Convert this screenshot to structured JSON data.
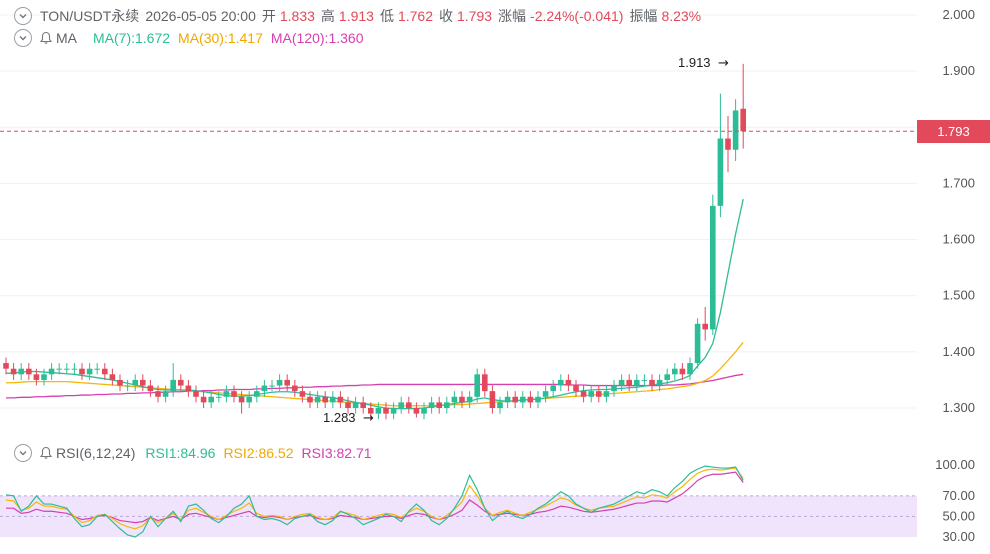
{
  "header": {
    "symbol": "TON/USDT永续",
    "datetime": "2026-05-05 20:00",
    "open_label": "开",
    "open": "1.833",
    "high_label": "高",
    "high": "1.913",
    "low_label": "低",
    "low": "1.762",
    "close_label": "收",
    "close": "1.793",
    "change_label": "涨幅",
    "change": "-2.24%(-0.041)",
    "amp_label": "振幅",
    "amp": "8.23%"
  },
  "ma": {
    "label": "MA",
    "ma7": "MA(7):1.672",
    "ma30": "MA(30):1.417",
    "ma120": "MA(120):1.360"
  },
  "rsi": {
    "label": "RSI(6,12,24)",
    "rsi1": "RSI1:84.96",
    "rsi2": "RSI2:86.52",
    "rsi3": "RSI3:82.71"
  },
  "price_tag": "1.793",
  "annotations": {
    "high": "1.913",
    "low": "1.283"
  },
  "colors": {
    "up": "#2dbd96",
    "down": "#e2495b",
    "ma7": "#2dbd96",
    "ma30": "#f5b70a",
    "ma120": "#d63fb0",
    "rsi_band": "#efe4fb"
  },
  "chart_data": {
    "type": "candlestick",
    "y_ticks": [
      "2.000",
      "1.900",
      "1.800",
      "1.700",
      "1.600",
      "1.500",
      "1.400",
      "1.300"
    ],
    "ylim": [
      1.25,
      2.02
    ],
    "rsi_ticks": [
      "100.00",
      "70.00",
      "50.00",
      "30.00"
    ],
    "rsi_ylim": [
      25,
      105
    ],
    "rsi_band": [
      30,
      70
    ],
    "candles": [
      [
        1.38,
        1.37,
        1.39,
        1.36
      ],
      [
        1.37,
        1.36,
        1.38,
        1.35
      ],
      [
        1.36,
        1.37,
        1.38,
        1.35
      ],
      [
        1.37,
        1.36,
        1.38,
        1.35
      ],
      [
        1.36,
        1.35,
        1.37,
        1.34
      ],
      [
        1.35,
        1.36,
        1.37,
        1.34
      ],
      [
        1.36,
        1.37,
        1.38,
        1.35
      ],
      [
        1.37,
        1.37,
        1.38,
        1.36
      ],
      [
        1.37,
        1.37,
        1.38,
        1.36
      ],
      [
        1.37,
        1.37,
        1.38,
        1.36
      ],
      [
        1.37,
        1.36,
        1.38,
        1.35
      ],
      [
        1.36,
        1.37,
        1.38,
        1.35
      ],
      [
        1.37,
        1.37,
        1.38,
        1.36
      ],
      [
        1.37,
        1.36,
        1.38,
        1.35
      ],
      [
        1.36,
        1.35,
        1.37,
        1.34
      ],
      [
        1.35,
        1.34,
        1.36,
        1.33
      ],
      [
        1.34,
        1.34,
        1.35,
        1.33
      ],
      [
        1.34,
        1.35,
        1.36,
        1.33
      ],
      [
        1.35,
        1.34,
        1.36,
        1.33
      ],
      [
        1.34,
        1.33,
        1.35,
        1.32
      ],
      [
        1.33,
        1.32,
        1.34,
        1.31
      ],
      [
        1.32,
        1.33,
        1.34,
        1.31
      ],
      [
        1.33,
        1.35,
        1.38,
        1.32
      ],
      [
        1.35,
        1.34,
        1.36,
        1.33
      ],
      [
        1.34,
        1.33,
        1.35,
        1.32
      ],
      [
        1.33,
        1.32,
        1.34,
        1.31
      ],
      [
        1.32,
        1.31,
        1.33,
        1.3
      ],
      [
        1.31,
        1.32,
        1.33,
        1.3
      ],
      [
        1.32,
        1.32,
        1.33,
        1.31
      ],
      [
        1.32,
        1.33,
        1.34,
        1.31
      ],
      [
        1.33,
        1.32,
        1.34,
        1.31
      ],
      [
        1.32,
        1.31,
        1.33,
        1.29
      ],
      [
        1.31,
        1.32,
        1.33,
        1.3
      ],
      [
        1.32,
        1.33,
        1.34,
        1.31
      ],
      [
        1.33,
        1.34,
        1.35,
        1.32
      ],
      [
        1.34,
        1.34,
        1.35,
        1.33
      ],
      [
        1.34,
        1.35,
        1.36,
        1.33
      ],
      [
        1.35,
        1.34,
        1.36,
        1.33
      ],
      [
        1.34,
        1.33,
        1.35,
        1.32
      ],
      [
        1.33,
        1.32,
        1.34,
        1.31
      ],
      [
        1.32,
        1.31,
        1.33,
        1.3
      ],
      [
        1.31,
        1.32,
        1.33,
        1.3
      ],
      [
        1.32,
        1.31,
        1.33,
        1.3
      ],
      [
        1.31,
        1.32,
        1.33,
        1.3
      ],
      [
        1.32,
        1.31,
        1.33,
        1.3
      ],
      [
        1.31,
        1.3,
        1.32,
        1.29
      ],
      [
        1.3,
        1.31,
        1.32,
        1.29
      ],
      [
        1.31,
        1.3,
        1.32,
        1.29
      ],
      [
        1.3,
        1.29,
        1.31,
        1.28
      ],
      [
        1.29,
        1.3,
        1.31,
        1.28
      ],
      [
        1.3,
        1.29,
        1.31,
        1.28
      ],
      [
        1.29,
        1.3,
        1.31,
        1.28
      ],
      [
        1.3,
        1.31,
        1.32,
        1.29
      ],
      [
        1.31,
        1.3,
        1.32,
        1.29
      ],
      [
        1.3,
        1.29,
        1.31,
        1.283
      ],
      [
        1.29,
        1.3,
        1.31,
        1.28
      ],
      [
        1.3,
        1.31,
        1.32,
        1.29
      ],
      [
        1.31,
        1.3,
        1.32,
        1.29
      ],
      [
        1.3,
        1.31,
        1.32,
        1.29
      ],
      [
        1.31,
        1.32,
        1.33,
        1.3
      ],
      [
        1.32,
        1.31,
        1.33,
        1.3
      ],
      [
        1.31,
        1.32,
        1.33,
        1.3
      ],
      [
        1.32,
        1.36,
        1.37,
        1.31
      ],
      [
        1.36,
        1.33,
        1.37,
        1.32
      ],
      [
        1.33,
        1.3,
        1.34,
        1.29
      ],
      [
        1.3,
        1.31,
        1.32,
        1.29
      ],
      [
        1.31,
        1.32,
        1.33,
        1.3
      ],
      [
        1.32,
        1.31,
        1.33,
        1.3
      ],
      [
        1.31,
        1.32,
        1.33,
        1.3
      ],
      [
        1.32,
        1.31,
        1.33,
        1.3
      ],
      [
        1.31,
        1.32,
        1.33,
        1.3
      ],
      [
        1.32,
        1.33,
        1.34,
        1.31
      ],
      [
        1.33,
        1.34,
        1.35,
        1.32
      ],
      [
        1.34,
        1.35,
        1.36,
        1.33
      ],
      [
        1.35,
        1.34,
        1.36,
        1.33
      ],
      [
        1.34,
        1.33,
        1.35,
        1.32
      ],
      [
        1.33,
        1.32,
        1.34,
        1.31
      ],
      [
        1.32,
        1.33,
        1.34,
        1.31
      ],
      [
        1.33,
        1.32,
        1.34,
        1.31
      ],
      [
        1.32,
        1.33,
        1.34,
        1.31
      ],
      [
        1.33,
        1.34,
        1.35,
        1.32
      ],
      [
        1.34,
        1.35,
        1.36,
        1.33
      ],
      [
        1.35,
        1.34,
        1.36,
        1.33
      ],
      [
        1.34,
        1.35,
        1.36,
        1.33
      ],
      [
        1.35,
        1.35,
        1.36,
        1.34
      ],
      [
        1.35,
        1.34,
        1.36,
        1.33
      ],
      [
        1.34,
        1.35,
        1.36,
        1.33
      ],
      [
        1.35,
        1.36,
        1.37,
        1.34
      ],
      [
        1.36,
        1.37,
        1.38,
        1.35
      ],
      [
        1.37,
        1.36,
        1.38,
        1.35
      ],
      [
        1.36,
        1.38,
        1.39,
        1.35
      ],
      [
        1.38,
        1.45,
        1.46,
        1.37
      ],
      [
        1.45,
        1.44,
        1.48,
        1.42
      ],
      [
        1.44,
        1.66,
        1.68,
        1.43
      ],
      [
        1.66,
        1.78,
        1.86,
        1.64
      ],
      [
        1.78,
        1.76,
        1.82,
        1.72
      ],
      [
        1.76,
        1.83,
        1.85,
        1.74
      ],
      [
        1.833,
        1.793,
        1.913,
        1.762
      ]
    ],
    "ma7": [
      1.362,
      1.362,
      1.364,
      1.365,
      1.365,
      1.364,
      1.363,
      1.362,
      1.361,
      1.36,
      1.358,
      1.356,
      1.354,
      1.352,
      1.35,
      1.347,
      1.344,
      1.341,
      1.338,
      1.335,
      1.333,
      1.332,
      1.332,
      1.332,
      1.332,
      1.331,
      1.329,
      1.327,
      1.324,
      1.322,
      1.321,
      1.321,
      1.322,
      1.324,
      1.326,
      1.328,
      1.329,
      1.329,
      1.328,
      1.326,
      1.324,
      1.322,
      1.32,
      1.318,
      1.316,
      1.313,
      1.31,
      1.308,
      1.305,
      1.302,
      1.3,
      1.299,
      1.299,
      1.299,
      1.299,
      1.3,
      1.302,
      1.304,
      1.306,
      1.308,
      1.31,
      1.312,
      1.316,
      1.318,
      1.315,
      1.313,
      1.312,
      1.313,
      1.314,
      1.315,
      1.316,
      1.318,
      1.32,
      1.323,
      1.326,
      1.329,
      1.331,
      1.332,
      1.333,
      1.333,
      1.334,
      1.335,
      1.336,
      1.337,
      1.339,
      1.341,
      1.343,
      1.345,
      1.348,
      1.352,
      1.358,
      1.375,
      1.39,
      1.415,
      1.47,
      1.54,
      1.61,
      1.672
    ],
    "ma30": [
      1.345,
      1.345,
      1.346,
      1.347,
      1.347,
      1.347,
      1.347,
      1.347,
      1.347,
      1.346,
      1.345,
      1.344,
      1.343,
      1.342,
      1.341,
      1.34,
      1.339,
      1.338,
      1.337,
      1.336,
      1.335,
      1.334,
      1.333,
      1.332,
      1.331,
      1.33,
      1.329,
      1.328,
      1.327,
      1.326,
      1.325,
      1.324,
      1.323,
      1.322,
      1.321,
      1.32,
      1.319,
      1.318,
      1.317,
      1.316,
      1.315,
      1.314,
      1.313,
      1.312,
      1.311,
      1.31,
      1.309,
      1.308,
      1.307,
      1.306,
      1.305,
      1.304,
      1.304,
      1.304,
      1.304,
      1.304,
      1.304,
      1.305,
      1.305,
      1.306,
      1.306,
      1.307,
      1.308,
      1.309,
      1.31,
      1.311,
      1.312,
      1.313,
      1.314,
      1.315,
      1.316,
      1.317,
      1.318,
      1.319,
      1.32,
      1.321,
      1.322,
      1.323,
      1.324,
      1.325,
      1.326,
      1.327,
      1.328,
      1.329,
      1.33,
      1.331,
      1.333,
      1.334,
      1.336,
      1.338,
      1.34,
      1.344,
      1.349,
      1.357,
      1.37,
      1.385,
      1.4,
      1.417
    ],
    "ma120": [
      1.318,
      1.318,
      1.319,
      1.319,
      1.32,
      1.32,
      1.321,
      1.321,
      1.322,
      1.322,
      1.323,
      1.323,
      1.324,
      1.324,
      1.325,
      1.325,
      1.326,
      1.326,
      1.327,
      1.327,
      1.328,
      1.328,
      1.329,
      1.329,
      1.33,
      1.33,
      1.331,
      1.331,
      1.332,
      1.332,
      1.333,
      1.333,
      1.333,
      1.334,
      1.334,
      1.335,
      1.335,
      1.336,
      1.336,
      1.337,
      1.337,
      1.338,
      1.338,
      1.339,
      1.339,
      1.34,
      1.34,
      1.341,
      1.341,
      1.342,
      1.342,
      1.342,
      1.342,
      1.342,
      1.342,
      1.342,
      1.342,
      1.342,
      1.342,
      1.342,
      1.342,
      1.342,
      1.342,
      1.342,
      1.342,
      1.342,
      1.342,
      1.342,
      1.342,
      1.342,
      1.342,
      1.342,
      1.342,
      1.342,
      1.341,
      1.341,
      1.341,
      1.34,
      1.34,
      1.34,
      1.34,
      1.34,
      1.34,
      1.34,
      1.34,
      1.34,
      1.34,
      1.341,
      1.341,
      1.342,
      1.343,
      1.345,
      1.347,
      1.349,
      1.352,
      1.355,
      1.358,
      1.36
    ],
    "rsi1": [
      71,
      70,
      55,
      60,
      70,
      62,
      62,
      60,
      58,
      48,
      40,
      42,
      50,
      52,
      45,
      38,
      32,
      30,
      35,
      50,
      40,
      48,
      55,
      45,
      60,
      62,
      56,
      48,
      44,
      50,
      58,
      62,
      70,
      50,
      47,
      48,
      46,
      42,
      48,
      50,
      52,
      45,
      42,
      46,
      55,
      52,
      48,
      42,
      45,
      48,
      52,
      50,
      45,
      55,
      62,
      56,
      46,
      42,
      48,
      58,
      70,
      90,
      76,
      58,
      46,
      52,
      55,
      50,
      48,
      52,
      58,
      62,
      68,
      74,
      70,
      62,
      58,
      54,
      58,
      60,
      62,
      66,
      70,
      74,
      72,
      76,
      74,
      70,
      78,
      84,
      92,
      96,
      99,
      98,
      97,
      97,
      98,
      85
    ],
    "rsi2": [
      66,
      65,
      56,
      58,
      64,
      60,
      60,
      58,
      57,
      50,
      44,
      46,
      51,
      52,
      48,
      43,
      40,
      38,
      41,
      49,
      44,
      48,
      53,
      47,
      56,
      58,
      54,
      50,
      47,
      51,
      55,
      58,
      63,
      53,
      50,
      51,
      50,
      47,
      50,
      52,
      53,
      49,
      47,
      49,
      55,
      53,
      51,
      47,
      49,
      51,
      53,
      52,
      49,
      54,
      58,
      55,
      50,
      47,
      51,
      57,
      64,
      80,
      70,
      58,
      51,
      54,
      56,
      53,
      51,
      54,
      57,
      60,
      64,
      68,
      66,
      61,
      58,
      56,
      58,
      59,
      60,
      63,
      66,
      69,
      68,
      71,
      70,
      68,
      74,
      79,
      86,
      92,
      95,
      96,
      95,
      96,
      97,
      87
    ],
    "rsi3": [
      58,
      58,
      53,
      54,
      57,
      55,
      55,
      54,
      53,
      50,
      47,
      48,
      50,
      51,
      49,
      46,
      45,
      44,
      45,
      49,
      46,
      48,
      50,
      47,
      52,
      53,
      51,
      49,
      47,
      49,
      51,
      53,
      55,
      50,
      49,
      50,
      49,
      47,
      49,
      50,
      51,
      48,
      47,
      48,
      51,
      50,
      49,
      47,
      48,
      49,
      50,
      50,
      48,
      51,
      53,
      52,
      49,
      47,
      49,
      52,
      56,
      66,
      61,
      55,
      51,
      52,
      53,
      52,
      51,
      52,
      54,
      55,
      57,
      60,
      59,
      57,
      55,
      54,
      55,
      56,
      57,
      59,
      61,
      63,
      63,
      65,
      65,
      64,
      68,
      72,
      78,
      85,
      89,
      91,
      91,
      92,
      93,
      83
    ]
  }
}
